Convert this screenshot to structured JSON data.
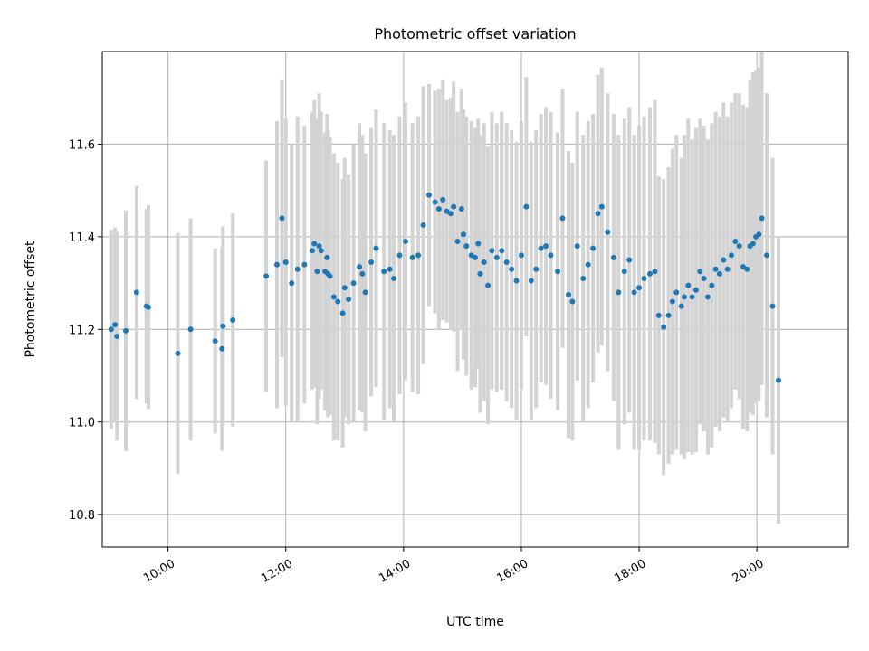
{
  "chart_data": {
    "type": "scatter",
    "title": "Photometric offset variation",
    "xlabel": "UTC time",
    "ylabel": "Photometric offset",
    "xlim": [
      "08:53",
      "21:33"
    ],
    "ylim": [
      10.73,
      11.8
    ],
    "xticks": [
      "10:00",
      "12:00",
      "14:00",
      "16:00",
      "18:00",
      "20:00"
    ],
    "yticks": [
      "10.8",
      "11.0",
      "11.2",
      "11.4",
      "11.6"
    ],
    "grid": true,
    "colors": {
      "marker": "#1f77b4",
      "errorbar": "#d3d3d3"
    },
    "series": [
      {
        "marker": "point",
        "x": [
          "09:02",
          "09:06",
          "09:08",
          "09:17",
          "09:28",
          "09:38",
          "09:40",
          "10:10",
          "10:23",
          "10:48",
          "10:55",
          "10:56",
          "11:06",
          "11:40",
          "11:51",
          "11:56",
          "12:00",
          "12:06",
          "12:12",
          "12:19",
          "12:27",
          "12:29",
          "12:32",
          "12:34",
          "12:36",
          "12:40",
          "12:42",
          "12:43",
          "12:45",
          "12:49",
          "12:53",
          "12:58",
          "13:00",
          "13:04",
          "13:09",
          "13:15",
          "13:18",
          "13:21",
          "13:27",
          "13:32",
          "13:40",
          "13:46",
          "13:50",
          "13:56",
          "14:02",
          "14:09",
          "14:15",
          "14:20",
          "14:26",
          "14:32",
          "14:36",
          "14:40",
          "14:44",
          "14:48",
          "14:51",
          "14:55",
          "14:59",
          "15:01",
          "15:04",
          "15:09",
          "15:13",
          "15:16",
          "15:18",
          "15:22",
          "15:26",
          "15:30",
          "15:35",
          "15:40",
          "15:45",
          "15:50",
          "15:55",
          "16:00",
          "16:05",
          "16:10",
          "16:15",
          "16:20",
          "16:25",
          "16:30",
          "16:37",
          "16:42",
          "16:48",
          "16:52",
          "16:57",
          "17:03",
          "17:08",
          "17:13",
          "17:18",
          "17:22",
          "17:28",
          "17:34",
          "17:39",
          "17:45",
          "17:50",
          "17:55",
          "18:00",
          "18:05",
          "18:11",
          "18:16",
          "18:20",
          "18:25",
          "18:30",
          "18:34",
          "18:38",
          "18:43",
          "18:46",
          "18:50",
          "18:54",
          "18:58",
          "19:02",
          "19:06",
          "19:10",
          "19:14",
          "19:18",
          "19:22",
          "19:26",
          "19:30",
          "19:34",
          "19:38",
          "19:42",
          "19:46",
          "19:50",
          "19:53",
          "19:56",
          "19:59",
          "20:02",
          "20:05",
          "20:10",
          "20:16",
          "20:22"
        ],
        "y": [
          11.2,
          11.21,
          11.185,
          11.197,
          11.28,
          11.25,
          11.248,
          11.148,
          11.2,
          11.175,
          11.158,
          11.207,
          11.22,
          11.315,
          11.34,
          11.44,
          11.345,
          11.3,
          11.33,
          11.34,
          11.37,
          11.385,
          11.325,
          11.38,
          11.37,
          11.325,
          11.355,
          11.32,
          11.315,
          11.27,
          11.26,
          11.235,
          11.29,
          11.265,
          11.3,
          11.335,
          11.32,
          11.28,
          11.345,
          11.375,
          11.325,
          11.33,
          11.31,
          11.36,
          11.39,
          11.355,
          11.36,
          11.425,
          11.49,
          11.475,
          11.46,
          11.48,
          11.455,
          11.45,
          11.465,
          11.39,
          11.46,
          11.405,
          11.38,
          11.36,
          11.355,
          11.385,
          11.32,
          11.345,
          11.295,
          11.37,
          11.355,
          11.37,
          11.345,
          11.33,
          11.305,
          11.36,
          11.465,
          11.305,
          11.33,
          11.375,
          11.38,
          11.36,
          11.325,
          11.44,
          11.275,
          11.26,
          11.38,
          11.31,
          11.34,
          11.375,
          11.45,
          11.465,
          11.41,
          11.355,
          11.28,
          11.325,
          11.35,
          11.28,
          11.29,
          11.31,
          11.32,
          11.325,
          11.23,
          11.205,
          11.23,
          11.26,
          11.28,
          11.25,
          11.27,
          11.295,
          11.27,
          11.285,
          11.325,
          11.31,
          11.27,
          11.295,
          11.33,
          11.32,
          11.35,
          11.33,
          11.36,
          11.39,
          11.38,
          11.335,
          11.33,
          11.38,
          11.385,
          11.4,
          11.405,
          11.44,
          11.36,
          11.25,
          11.09
        ],
        "err": [
          0.215,
          0.21,
          0.225,
          0.26,
          0.23,
          0.21,
          0.22,
          0.26,
          0.24,
          0.2,
          0.22,
          0.215,
          0.23,
          0.25,
          0.31,
          0.3,
          0.31,
          0.3,
          0.33,
          0.3,
          0.3,
          0.31,
          0.33,
          0.33,
          0.3,
          0.3,
          0.31,
          0.31,
          0.3,
          0.31,
          0.3,
          0.29,
          0.28,
          0.27,
          0.3,
          0.31,
          0.3,
          0.3,
          0.29,
          0.3,
          0.32,
          0.3,
          0.31,
          0.3,
          0.3,
          0.29,
          0.3,
          0.3,
          0.24,
          0.24,
          0.26,
          0.26,
          0.24,
          0.25,
          0.27,
          0.28,
          0.26,
          0.27,
          0.28,
          0.29,
          0.28,
          0.27,
          0.3,
          0.3,
          0.3,
          0.3,
          0.29,
          0.3,
          0.3,
          0.3,
          0.3,
          0.29,
          0.28,
          0.3,
          0.3,
          0.29,
          0.3,
          0.31,
          0.3,
          0.28,
          0.31,
          0.3,
          0.29,
          0.31,
          0.31,
          0.29,
          0.3,
          0.3,
          0.3,
          0.31,
          0.34,
          0.33,
          0.33,
          0.34,
          0.35,
          0.35,
          0.36,
          0.37,
          0.3,
          0.32,
          0.32,
          0.33,
          0.34,
          0.32,
          0.35,
          0.36,
          0.34,
          0.35,
          0.33,
          0.33,
          0.34,
          0.35,
          0.34,
          0.34,
          0.34,
          0.33,
          0.33,
          0.32,
          0.33,
          0.35,
          0.35,
          0.36,
          0.37,
          0.36,
          0.36,
          0.36,
          0.35,
          0.32,
          0.31
        ]
      }
    ]
  }
}
